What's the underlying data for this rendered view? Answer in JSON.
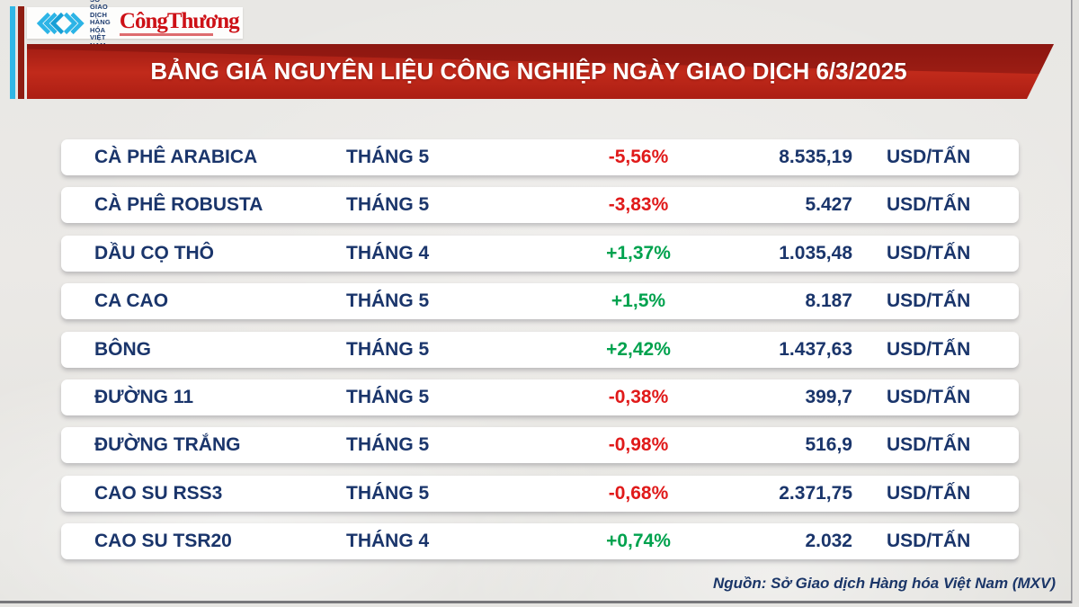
{
  "header": {
    "mxv_logo": {
      "icon": "mxv-diamond-chevrons-icon",
      "org_name": "SỞ GIAO DỊCH\nHÀNG HÓA\nVIỆT NAM"
    },
    "congthuong_logo": {
      "wordmark": "CôngThương"
    },
    "title": "BẢNG GIÁ NGUYÊN LIỆU CÔNG NGHIỆP NGÀY GIAO DỊCH 6/3/2025"
  },
  "table": {
    "rows": [
      {
        "name": "CÀ PHÊ ARABICA",
        "month": "THÁNG 5",
        "change": "-5,56%",
        "direction": "down",
        "price": "8.535,19",
        "unit": "USD/TẤN"
      },
      {
        "name": "CÀ PHÊ ROBUSTA",
        "month": "THÁNG 5",
        "change": "-3,83%",
        "direction": "down",
        "price": "5.427",
        "unit": "USD/TẤN"
      },
      {
        "name": "DẦU CỌ THÔ",
        "month": "THÁNG 4",
        "change": "+1,37%",
        "direction": "up",
        "price": "1.035,48",
        "unit": "USD/TẤN"
      },
      {
        "name": "CA CAO",
        "month": "THÁNG 5",
        "change": "+1,5%",
        "direction": "up",
        "price": "8.187",
        "unit": "USD/TẤN"
      },
      {
        "name": "BÔNG",
        "month": "THÁNG 5",
        "change": "+2,42%",
        "direction": "up",
        "price": "1.437,63",
        "unit": "USD/TẤN"
      },
      {
        "name": "ĐƯỜNG 11",
        "month": "THÁNG 5",
        "change": "-0,38%",
        "direction": "down",
        "price": "399,7",
        "unit": "USD/TẤN"
      },
      {
        "name": "ĐƯỜNG TRẮNG",
        "month": "THÁNG 5",
        "change": "-0,98%",
        "direction": "down",
        "price": "516,9",
        "unit": "USD/TẤN"
      },
      {
        "name": "CAO SU RSS3",
        "month": "THÁNG 5",
        "change": "-0,68%",
        "direction": "down",
        "price": "2.371,75",
        "unit": "USD/TẤN"
      },
      {
        "name": "CAO SU TSR20",
        "month": "THÁNG 4",
        "change": "+0,74%",
        "direction": "up",
        "price": "2.032",
        "unit": "USD/TẤN"
      }
    ]
  },
  "footer": {
    "source": "Nguồn: Sở Giao dịch Hàng hóa Việt Nam (MXV)"
  },
  "colors": {
    "negative": "#e01a1a",
    "positive": "#00a24e",
    "navy_text": "#1a356b",
    "banner_red": "#c12a1b",
    "banner_dark_red": "#7c130e",
    "stripe_cyan": "#31b7e6",
    "stripe_maroon": "#8e1d12",
    "congthuong_red": "#cd1016"
  },
  "chart_data": {
    "type": "table",
    "title": "BẢNG GIÁ NGUYÊN LIỆU CÔNG NGHIỆP NGÀY GIAO DỊCH 6/3/2025",
    "columns": [
      "commodity",
      "contract_month",
      "percent_change",
      "price",
      "unit"
    ],
    "rows": [
      [
        "CÀ PHÊ ARABICA",
        "THÁNG 5",
        "-5,56%",
        "8.535,19",
        "USD/TẤN"
      ],
      [
        "CÀ PHÊ ROBUSTA",
        "THÁNG 5",
        "-3,83%",
        "5.427",
        "USD/TẤN"
      ],
      [
        "DẦU CỌ THÔ",
        "THÁNG 4",
        "+1,37%",
        "1.035,48",
        "USD/TẤN"
      ],
      [
        "CA CAO",
        "THÁNG 5",
        "+1,5%",
        "8.187",
        "USD/TẤN"
      ],
      [
        "BÔNG",
        "THÁNG 5",
        "+2,42%",
        "1.437,63",
        "USD/TẤN"
      ],
      [
        "ĐƯỜNG 11",
        "THÁNG 5",
        "-0,38%",
        "399,7",
        "USD/TẤN"
      ],
      [
        "ĐƯỜNG TRẮNG",
        "THÁNG 5",
        "-0,98%",
        "516,9",
        "USD/TẤN"
      ],
      [
        "CAO SU RSS3",
        "THÁNG 5",
        "-0,68%",
        "2.371,75",
        "USD/TẤN"
      ],
      [
        "CAO SU TSR20",
        "THÁNG 4",
        "+0,74%",
        "2.032",
        "USD/TẤN"
      ]
    ],
    "percent_change_numeric": [
      -5.56,
      -3.83,
      1.37,
      1.5,
      2.42,
      -0.38,
      -0.98,
      -0.68,
      0.74
    ],
    "price_numeric": [
      8535.19,
      5427,
      1035.48,
      8187,
      1437.63,
      399.7,
      516.9,
      2371.75,
      2032
    ],
    "source": "Nguồn: Sở Giao dịch Hàng hóa Việt Nam (MXV)"
  }
}
